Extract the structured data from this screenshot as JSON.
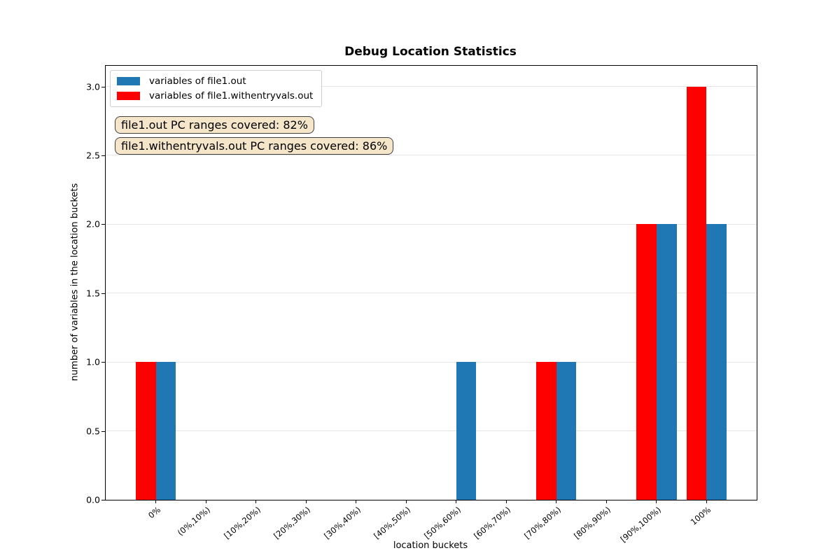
{
  "chart_data": {
    "type": "bar",
    "title": "Debug Location Statistics",
    "xlabel": "location buckets",
    "ylabel": "number of variables in the location buckets",
    "categories": [
      "0%",
      "(0%,10%)",
      "[10%,20%)",
      "[20%,30%)",
      "[30%,40%)",
      "[40%,50%)",
      "[50%,60%)",
      "[60%,70%)",
      "[70%,80%)",
      "[80%,90%)",
      "[90%,100%)",
      "100%"
    ],
    "series": [
      {
        "name": "variables of file1.out",
        "color": "#1f77b4",
        "values": [
          1,
          0,
          0,
          0,
          0,
          0,
          1,
          0,
          1,
          0,
          2,
          2
        ]
      },
      {
        "name": "variables of file1.withentryvals.out",
        "color": "#ff0000",
        "values": [
          1,
          0,
          0,
          0,
          0,
          0,
          0,
          0,
          1,
          0,
          2,
          3
        ]
      }
    ],
    "yticks": [
      "0.0",
      "0.5",
      "1.0",
      "1.5",
      "2.0",
      "2.5",
      "3.0"
    ],
    "ylim": [
      0,
      3.15
    ],
    "grid": "horizontal",
    "gridline_color": "#e5e5e5",
    "legend_position": "upper left",
    "annotations": [
      {
        "text": "file1.out PC ranges covered: 82%"
      },
      {
        "text": "file1.withentryvals.out PC ranges covered: 86%"
      }
    ],
    "annotation_bg": "#f5e6ca",
    "annotation_border": "#404040"
  }
}
